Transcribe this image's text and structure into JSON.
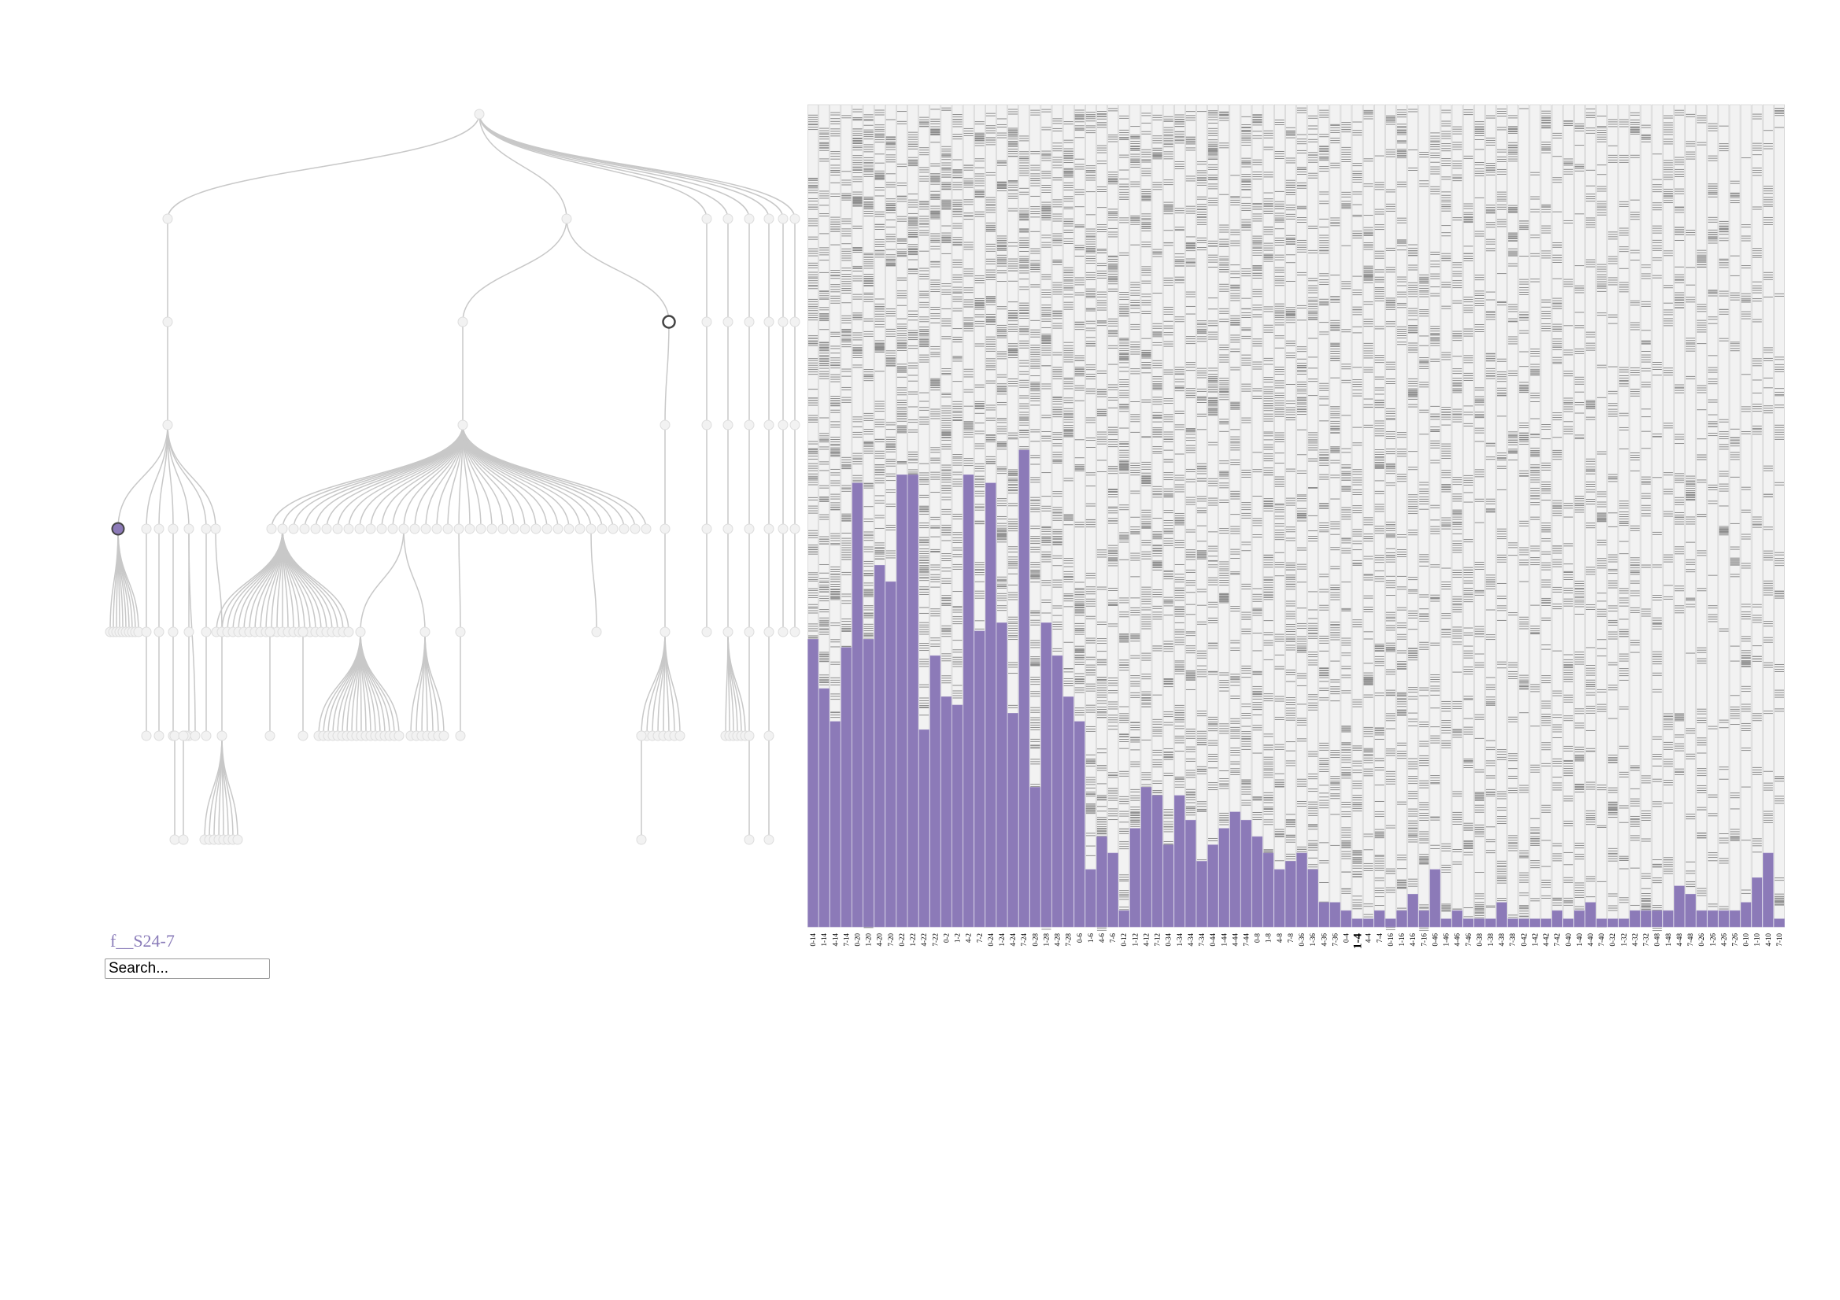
{
  "selected_taxon": "f__S24-7",
  "search": {
    "placeholder": "Search..."
  },
  "colors": {
    "bar": "#8c7ab8",
    "column_bg": "#f2f2f2",
    "heat_line": "#8c8c8c",
    "tree_link": "#c8c8c8",
    "tree_node": "#f2f2f2",
    "highlight_node_stroke": "#444444"
  },
  "chart_data": {
    "type": "bar",
    "ylim": [
      0,
      1
    ],
    "categories": [
      "0-14",
      "1-14",
      "4-14",
      "7-14",
      "0-20",
      "1-20",
      "4-20",
      "7-20",
      "0-22",
      "1-22",
      "4-22",
      "7-22",
      "0-2",
      "1-2",
      "4-2",
      "7-2",
      "0-24",
      "1-24",
      "4-24",
      "7-24",
      "0-28",
      "1-28",
      "4-28",
      "7-28",
      "0-6",
      "1-6",
      "4-6",
      "7-6",
      "0-12",
      "1-12",
      "4-12",
      "7-12",
      "0-34",
      "1-34",
      "4-34",
      "7-34",
      "0-44",
      "1-44",
      "4-44",
      "7-44",
      "0-8",
      "1-8",
      "4-8",
      "7-8",
      "0-36",
      "1-36",
      "4-36",
      "7-36",
      "0-4",
      "1-4",
      "4-4",
      "7-4",
      "0-16",
      "1-16",
      "4-16",
      "7-16",
      "0-46",
      "1-46",
      "4-46",
      "7-46",
      "0-38",
      "1-38",
      "4-38",
      "7-38",
      "0-42",
      "1-42",
      "4-42",
      "7-42",
      "0-40",
      "1-40",
      "4-40",
      "7-40",
      "0-32",
      "1-32",
      "4-32",
      "7-32",
      "0-48",
      "1-48",
      "4-48",
      "7-48",
      "0-26",
      "1-26",
      "4-26",
      "7-26",
      "0-10",
      "1-10",
      "4-10",
      "7-10"
    ],
    "highlighted_category": "1-4",
    "values": [
      0.35,
      0.29,
      0.25,
      0.34,
      0.54,
      0.35,
      0.44,
      0.42,
      0.55,
      0.55,
      0.24,
      0.33,
      0.28,
      0.27,
      0.55,
      0.36,
      0.54,
      0.37,
      0.26,
      0.58,
      0.17,
      0.37,
      0.33,
      0.28,
      0.25,
      0.07,
      0.11,
      0.09,
      0.02,
      0.12,
      0.17,
      0.16,
      0.1,
      0.16,
      0.13,
      0.08,
      0.1,
      0.12,
      0.14,
      0.13,
      0.11,
      0.09,
      0.07,
      0.08,
      0.09,
      0.07,
      0.03,
      0.03,
      0.02,
      0.01,
      0.01,
      0.02,
      0.01,
      0.02,
      0.04,
      0.02,
      0.07,
      0.01,
      0.02,
      0.01,
      0.01,
      0.01,
      0.03,
      0.01,
      0.01,
      0.01,
      0.01,
      0.02,
      0.01,
      0.02,
      0.03,
      0.01,
      0.01,
      0.01,
      0.02,
      0.02,
      0.02,
      0.02,
      0.05,
      0.04,
      0.02,
      0.02,
      0.02,
      0.02,
      0.03,
      0.06,
      0.09,
      0.01
    ]
  }
}
